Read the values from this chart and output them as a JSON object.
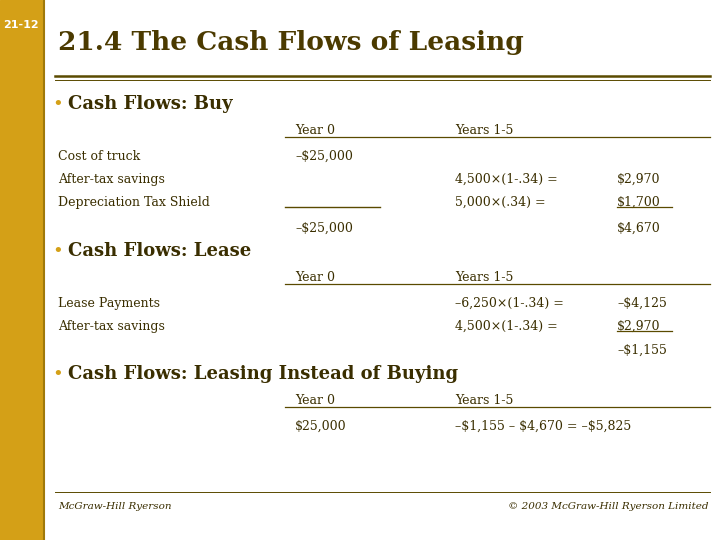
{
  "slide_number": "21-12",
  "title": "21.4 The Cash Flows of Leasing",
  "bg_color": "#FFFFFF",
  "sidebar_color": "#D4A017",
  "sidebar_line_color": "#A0790A",
  "title_color": "#4B3A00",
  "text_color": "#3A2E00",
  "line_color": "#5A4A00",
  "bullet_color": "#D4A017",
  "section1_bullet": "Cash Flows: Buy",
  "section2_bullet": "Cash Flows: Lease",
  "section3_bullet": "Cash Flows: Leasing Instead of Buying",
  "footer_left": "McGraw-Hill Ryerson",
  "footer_right": "© 2003 McGraw-Hill Ryerson Limited"
}
